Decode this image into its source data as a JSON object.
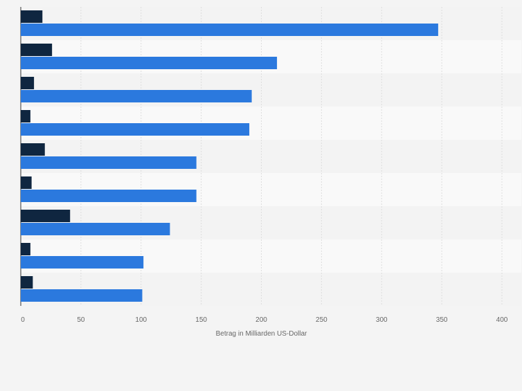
{
  "chart_data": {
    "type": "bar",
    "orientation": "horizontal",
    "categories": [
      "",
      "",
      "",
      "",
      "",
      "",
      "",
      "",
      ""
    ],
    "series": [
      {
        "color": "#0f2640",
        "values": [
          18,
          26,
          11,
          8,
          20,
          9,
          41,
          8,
          10
        ]
      },
      {
        "color": "#2b79de",
        "values": [
          347,
          213,
          192,
          190,
          146,
          146,
          124,
          102,
          101
        ]
      }
    ],
    "xlabel": "Betrag in Milliarden US-Dollar",
    "xlim": [
      0,
      400
    ],
    "xticks": [
      0,
      50,
      100,
      150,
      200,
      250,
      300,
      350,
      400
    ],
    "xtick_labels": [
      "0",
      "50",
      "100",
      "150",
      "200",
      "250",
      "300",
      "350",
      "400"
    ],
    "grid": true,
    "legend": "none"
  }
}
